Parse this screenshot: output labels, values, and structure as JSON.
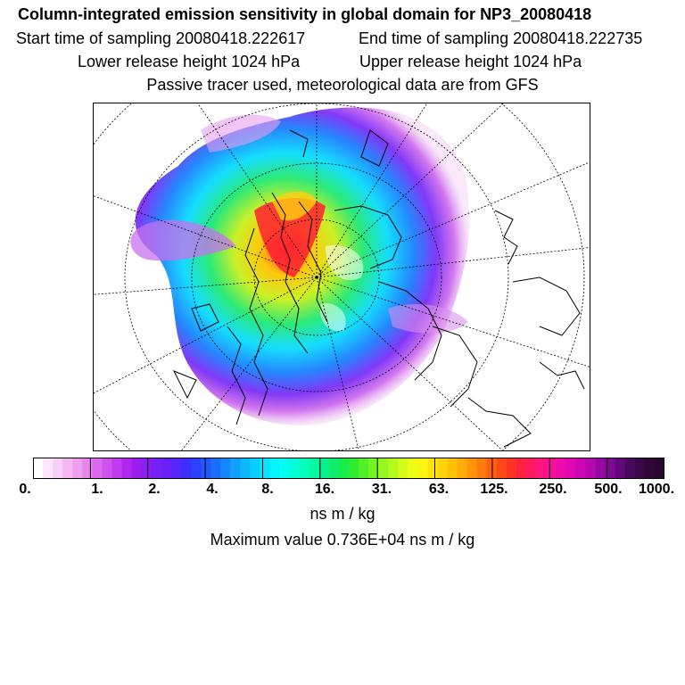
{
  "title": "Column-integrated emission sensitivity in global domain for NP3_20080418",
  "start_time": "Start time of sampling 20080418.222617",
  "end_time": "End time of sampling 20080418.222735",
  "lower_release": "Lower release height 1024 hPa",
  "upper_release": "Upper release height 1024 hPa",
  "tracer_note": "Passive tracer used, meteorological data are from GFS",
  "colorbar": {
    "colors": [
      "#ffffff",
      "#fbe6fb",
      "#f7d0f7",
      "#f3b8f3",
      "#eea0ee",
      "#e886ee",
      "#dc6aee",
      "#cf52ee",
      "#c03cee",
      "#b026ee",
      "#9a1ef0",
      "#8a1ef4",
      "#7a1ef6",
      "#6a20f8",
      "#5626fa",
      "#3f2ffc",
      "#2c40fe",
      "#2157ff",
      "#1a6eff",
      "#1487ff",
      "#10a0ff",
      "#0cb8ff",
      "#09cfff",
      "#07e2ff",
      "#05f2ff",
      "#04fff0",
      "#04ffd6",
      "#04ffbc",
      "#06f8a4",
      "#09f08c",
      "#10ec6c",
      "#18ec4c",
      "#30ec30",
      "#52f028",
      "#74f424",
      "#96f820",
      "#b6fa1c",
      "#d4fc18",
      "#ecfc14",
      "#fcf410",
      "#ffe40c",
      "#ffd408",
      "#ffc206",
      "#ffac06",
      "#ff9408",
      "#ff7a0c",
      "#ff6010",
      "#ff4818",
      "#ff3224",
      "#ff2240",
      "#ff1a60",
      "#ff1480",
      "#f8109a",
      "#ee0ca8",
      "#e008b2",
      "#cc08b4",
      "#b408b0",
      "#9a08a4",
      "#800894",
      "#620878",
      "#48085e",
      "#3a0848",
      "#300838",
      "#280830"
    ],
    "tick_labels": [
      "0.",
      "1.",
      "2.",
      "4.",
      "8.",
      "16.",
      "31.",
      "63.",
      "125.",
      "250.",
      "500.",
      "1000."
    ],
    "unit": "ns m / kg"
  },
  "max_value_text": "Maximum value  0.736E+04 ns m / kg"
}
